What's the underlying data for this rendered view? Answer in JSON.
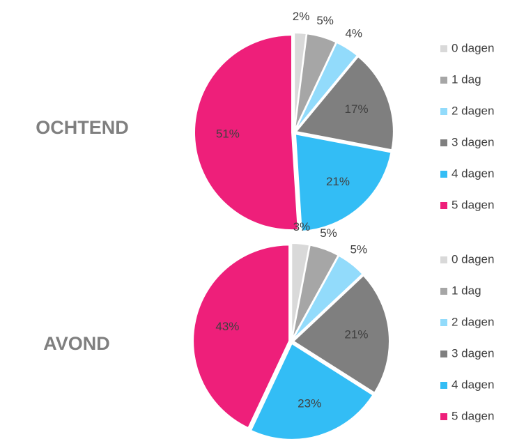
{
  "chart_data": [
    {
      "type": "pie",
      "title": "OCHTEND",
      "categories": [
        "0 dagen",
        "1 dag",
        "2 dagen",
        "3 dagen",
        "4 dagen",
        "5 dagen"
      ],
      "values": [
        2,
        5,
        4,
        17,
        21,
        51
      ],
      "value_labels": [
        "2%",
        "5%",
        "4%",
        "17%",
        "21%",
        "51%"
      ],
      "colors": [
        "#d9d9d9",
        "#a6a6a6",
        "#92dbfb",
        "#7f7f7f",
        "#33bdf5",
        "#ee1f7a"
      ]
    },
    {
      "type": "pie",
      "title": "AVOND",
      "categories": [
        "0 dagen",
        "1 dag",
        "2 dagen",
        "3 dagen",
        "4 dagen",
        "5 dagen"
      ],
      "values": [
        3,
        5,
        5,
        21,
        23,
        43
      ],
      "value_labels": [
        "3%",
        "5%",
        "5%",
        "21%",
        "23%",
        "43%"
      ],
      "colors": [
        "#d9d9d9",
        "#a6a6a6",
        "#92dbfb",
        "#7f7f7f",
        "#33bdf5",
        "#ee1f7a"
      ]
    }
  ]
}
